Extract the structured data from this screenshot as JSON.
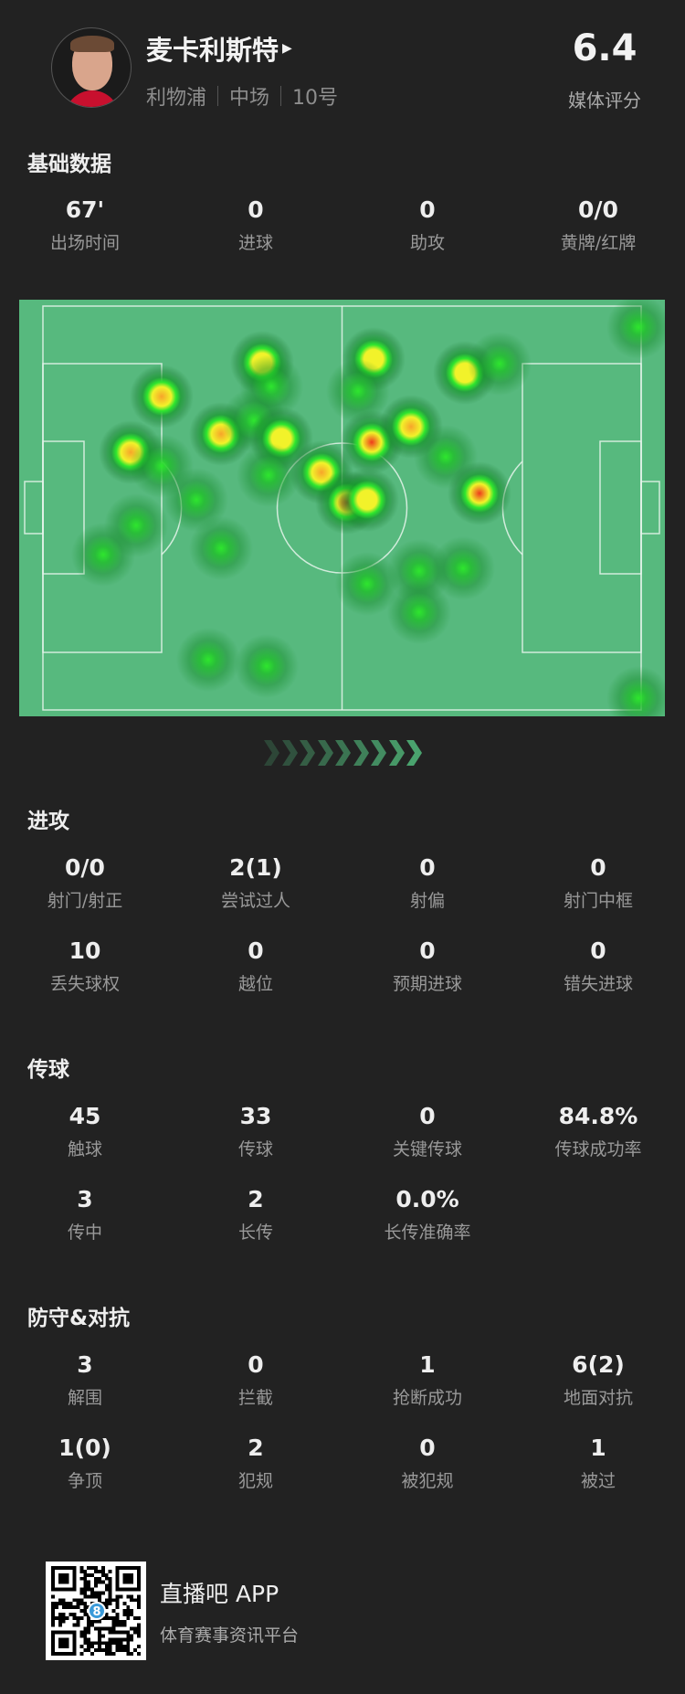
{
  "player": {
    "name": "麦卡利斯特",
    "team": "利物浦",
    "position": "中场",
    "number": "10号",
    "rating": "6.4",
    "rating_label": "媒体评分"
  },
  "basic": {
    "title": "基础数据",
    "stats": [
      {
        "value": "67'",
        "label": "出场时间"
      },
      {
        "value": "0",
        "label": "进球"
      },
      {
        "value": "0",
        "label": "助攻"
      },
      {
        "value": "0/0",
        "label": "黄牌/红牌"
      }
    ]
  },
  "heatmap": {
    "colors": {
      "pitch": "#57b97e",
      "lines": "#e8f4ec"
    },
    "points": [
      {
        "x": 99.6,
        "y": 5.3,
        "i": 0.2
      },
      {
        "x": 36.6,
        "y": 14,
        "i": 0.6
      },
      {
        "x": 55.3,
        "y": 13.2,
        "i": 0.6
      },
      {
        "x": 70.6,
        "y": 16.6,
        "i": 0.7
      },
      {
        "x": 76.4,
        "y": 14.3,
        "i": 0.25
      },
      {
        "x": 19.9,
        "y": 22.3,
        "i": 0.8
      },
      {
        "x": 38.1,
        "y": 20,
        "i": 0.3
      },
      {
        "x": 52.7,
        "y": 21.1,
        "i": 0.25
      },
      {
        "x": 29.7,
        "y": 31.7,
        "i": 0.8
      },
      {
        "x": 35.2,
        "y": 28.3,
        "i": 0.3
      },
      {
        "x": 39.9,
        "y": 32.8,
        "i": 0.7
      },
      {
        "x": 54.9,
        "y": 33.6,
        "i": 1.0
      },
      {
        "x": 61.5,
        "y": 29.8,
        "i": 0.75
      },
      {
        "x": 14.7,
        "y": 36.2,
        "i": 0.75
      },
      {
        "x": 67.3,
        "y": 37.4,
        "i": 0.5
      },
      {
        "x": 46.5,
        "y": 41.1,
        "i": 0.8
      },
      {
        "x": 50.9,
        "y": 48.7,
        "i": 0.95
      },
      {
        "x": 54.2,
        "y": 47.9,
        "i": 0.6
      },
      {
        "x": 73,
        "y": 46.4,
        "i": 1.0
      },
      {
        "x": 37.7,
        "y": 41.9,
        "i": 0.3
      },
      {
        "x": 19.9,
        "y": 39.6,
        "i": 0.25
      },
      {
        "x": 25.7,
        "y": 47.9,
        "i": 0.3
      },
      {
        "x": 15.5,
        "y": 54.3,
        "i": 0.3
      },
      {
        "x": 10,
        "y": 61.5,
        "i": 0.5
      },
      {
        "x": 29.7,
        "y": 60,
        "i": 0.3
      },
      {
        "x": 54.2,
        "y": 68.7,
        "i": 0.3
      },
      {
        "x": 62.9,
        "y": 65.7,
        "i": 0.3
      },
      {
        "x": 70.2,
        "y": 64.9,
        "i": 0.3
      },
      {
        "x": 62.9,
        "y": 75.8,
        "i": 0.3
      },
      {
        "x": 27.7,
        "y": 87.5,
        "i": 0.3
      },
      {
        "x": 37.4,
        "y": 89.1,
        "i": 0.5
      },
      {
        "x": 99.6,
        "y": 97,
        "i": 0.25
      }
    ]
  },
  "attack": {
    "title": "进攻",
    "stats": [
      {
        "value": "0/0",
        "label": "射门/射正"
      },
      {
        "value": "2(1)",
        "label": "尝试过人"
      },
      {
        "value": "0",
        "label": "射偏"
      },
      {
        "value": "0",
        "label": "射门中框"
      },
      {
        "value": "10",
        "label": "丢失球权"
      },
      {
        "value": "0",
        "label": "越位"
      },
      {
        "value": "0",
        "label": "预期进球"
      },
      {
        "value": "0",
        "label": "错失进球"
      }
    ]
  },
  "passing": {
    "title": "传球",
    "stats": [
      {
        "value": "45",
        "label": "触球"
      },
      {
        "value": "33",
        "label": "传球"
      },
      {
        "value": "0",
        "label": "关键传球"
      },
      {
        "value": "84.8%",
        "label": "传球成功率"
      },
      {
        "value": "3",
        "label": "传中"
      },
      {
        "value": "2",
        "label": "长传"
      },
      {
        "value": "0.0%",
        "label": "长传准确率"
      }
    ]
  },
  "defense": {
    "title": "防守&对抗",
    "stats": [
      {
        "value": "3",
        "label": "解围"
      },
      {
        "value": "0",
        "label": "拦截"
      },
      {
        "value": "1",
        "label": "抢断成功"
      },
      {
        "value": "6(2)",
        "label": "地面对抗"
      },
      {
        "value": "1(0)",
        "label": "争顶"
      },
      {
        "value": "2",
        "label": "犯规"
      },
      {
        "value": "0",
        "label": "被犯规"
      },
      {
        "value": "1",
        "label": "被过"
      }
    ]
  },
  "footer": {
    "app_name": "直播吧 APP",
    "tagline": "体育赛事资讯平台",
    "qr_badge": "8"
  }
}
